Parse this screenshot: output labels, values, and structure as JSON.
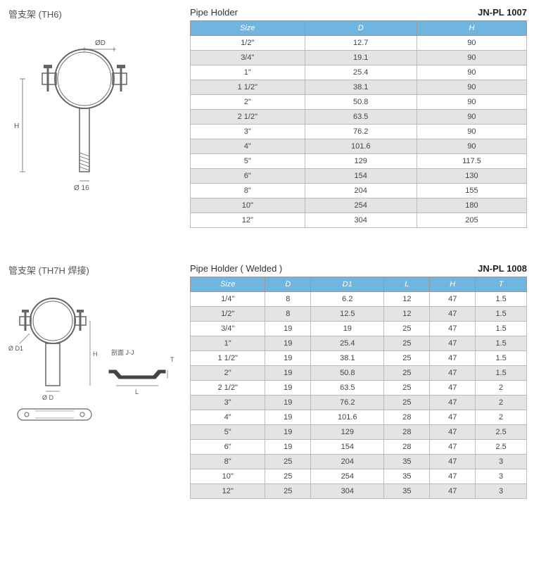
{
  "section1": {
    "cn_title": "管支架 (TH6)",
    "en_title": "Pipe Holder",
    "part_no": "JN-PL 1007",
    "diagram_labels": {
      "d": "ØD",
      "h": "H",
      "base": "Ø 16"
    },
    "table": {
      "columns": [
        "Size",
        "D",
        "H"
      ],
      "rows": [
        [
          "1/2\"",
          "12.7",
          "90"
        ],
        [
          "3/4\"",
          "19.1",
          "90"
        ],
        [
          "1\"",
          "25.4",
          "90"
        ],
        [
          "1 1/2\"",
          "38.1",
          "90"
        ],
        [
          "2\"",
          "50.8",
          "90"
        ],
        [
          "2 1/2\"",
          "63.5",
          "90"
        ],
        [
          "3\"",
          "76.2",
          "90"
        ],
        [
          "4\"",
          "101.6",
          "90"
        ],
        [
          "5\"",
          "129",
          "117.5"
        ],
        [
          "6\"",
          "154",
          "130"
        ],
        [
          "8\"",
          "204",
          "155"
        ],
        [
          "10\"",
          "254",
          "180"
        ],
        [
          "12\"",
          "304",
          "205"
        ]
      ]
    },
    "colors": {
      "header_bg": "#6fb5e0",
      "row_even_bg": "#e4e4e4",
      "row_odd_bg": "#ffffff",
      "border": "#bbbbbb"
    }
  },
  "section2": {
    "cn_title": "管支架 (TH7H 焊接)",
    "en_title": "Pipe Holder ( Welded )",
    "part_no": "JN-PL 1008",
    "diagram_labels": {
      "d1": "Ø D1",
      "h": "H",
      "od": "Ø D",
      "section": "剖面 J-J",
      "l": "L",
      "t": "T"
    },
    "table": {
      "columns": [
        "Size",
        "D",
        "D1",
        "L",
        "H",
        "T"
      ],
      "rows": [
        [
          "1/4\"",
          "8",
          "6.2",
          "12",
          "47",
          "1.5"
        ],
        [
          "1/2\"",
          "8",
          "12.5",
          "12",
          "47",
          "1.5"
        ],
        [
          "3/4\"",
          "19",
          "19",
          "25",
          "47",
          "1.5"
        ],
        [
          "1\"",
          "19",
          "25.4",
          "25",
          "47",
          "1.5"
        ],
        [
          "1 1/2\"",
          "19",
          "38.1",
          "25",
          "47",
          "1.5"
        ],
        [
          "2\"",
          "19",
          "50.8",
          "25",
          "47",
          "1.5"
        ],
        [
          "2 1/2\"",
          "19",
          "63.5",
          "25",
          "47",
          "2"
        ],
        [
          "3\"",
          "19",
          "76.2",
          "25",
          "47",
          "2"
        ],
        [
          "4\"",
          "19",
          "101.6",
          "28",
          "47",
          "2"
        ],
        [
          "5\"",
          "19",
          "129",
          "28",
          "47",
          "2.5"
        ],
        [
          "6\"",
          "19",
          "154",
          "28",
          "47",
          "2.5"
        ],
        [
          "8\"",
          "25",
          "204",
          "35",
          "47",
          "3"
        ],
        [
          "10\"",
          "25",
          "254",
          "35",
          "47",
          "3"
        ],
        [
          "12\"",
          "25",
          "304",
          "35",
          "47",
          "3"
        ]
      ]
    },
    "colors": {
      "header_bg": "#6fb5e0",
      "row_even_bg": "#e4e4e4",
      "row_odd_bg": "#ffffff",
      "border": "#bbbbbb"
    }
  }
}
